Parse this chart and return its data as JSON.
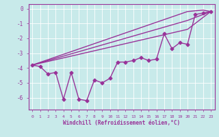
{
  "xlabel": "Windchill (Refroidissement éolien,°C)",
  "bg_color": "#c8eaea",
  "line_color": "#993399",
  "xlim": [
    -0.5,
    23.5
  ],
  "ylim": [
    -6.8,
    0.3
  ],
  "xticks": [
    0,
    1,
    2,
    3,
    4,
    5,
    6,
    7,
    8,
    9,
    10,
    11,
    12,
    13,
    14,
    15,
    16,
    17,
    18,
    19,
    20,
    21,
    22,
    23
  ],
  "yticks": [
    0,
    -1,
    -2,
    -3,
    -4,
    -5,
    -6
  ],
  "series": [
    [
      0,
      -3.8,
      23,
      -0.2
    ],
    [
      0,
      -3.8,
      23,
      -0.2
    ],
    [
      0,
      -3.8,
      10,
      -3.4,
      23,
      -0.2
    ],
    [
      0,
      -3.8,
      10,
      -3.4,
      17,
      -1.7,
      21,
      -0.4,
      23,
      -0.2
    ]
  ],
  "jagged": [
    -3.8,
    -3.9,
    -4.4,
    -4.3,
    -6.1,
    -4.3,
    -6.1,
    -6.2,
    -4.8,
    -5.0,
    -4.7,
    -3.6,
    -3.6,
    -3.5,
    -3.3,
    -3.5,
    -3.4,
    -1.7,
    -2.7,
    -2.3,
    -2.4,
    -0.4,
    -0.3,
    -0.2
  ],
  "linear1": [
    -3.8,
    -3.62,
    -3.44,
    -3.26,
    -3.08,
    -2.9,
    -2.72,
    -2.54,
    -2.36,
    -2.18,
    -2.0,
    -1.82,
    -1.64,
    -1.46,
    -1.28,
    -1.1,
    -0.92,
    -0.74,
    -0.56,
    -0.38,
    -0.2,
    -0.15,
    -0.1,
    -0.2
  ],
  "linear2": [
    -3.8,
    -3.65,
    -3.5,
    -3.35,
    -3.2,
    -3.05,
    -2.9,
    -2.75,
    -2.6,
    -2.45,
    -2.3,
    -2.15,
    -2.0,
    -1.85,
    -1.7,
    -1.55,
    -1.4,
    -1.25,
    -1.1,
    -0.95,
    -0.8,
    -0.6,
    -0.4,
    -0.2
  ],
  "linear3": [
    -3.8,
    -3.68,
    -3.56,
    -3.44,
    -3.32,
    -3.2,
    -3.08,
    -2.96,
    -2.84,
    -2.72,
    -2.6,
    -2.48,
    -2.36,
    -2.24,
    -2.12,
    -2.0,
    -1.88,
    -1.76,
    -1.64,
    -1.52,
    -1.4,
    -1.0,
    -0.6,
    -0.2
  ],
  "marker_size": 2.5,
  "linewidth": 1.0
}
